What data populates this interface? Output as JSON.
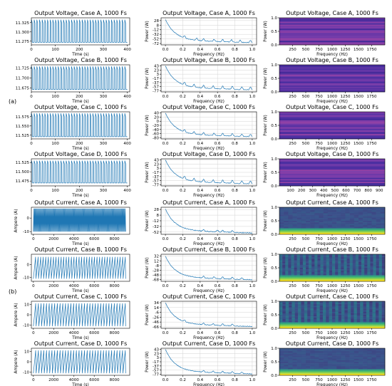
{
  "group_labels": [
    "(a)",
    "(b)"
  ],
  "chart_data": [
    {
      "type": "line",
      "title": "Output Voltage, Case A, 1000 Fs",
      "xlabel": "Time (s)",
      "ylabel": "",
      "xticks": [
        0,
        100,
        200,
        300,
        400
      ],
      "yticks": [
        11.275,
        11.3,
        11.325
      ],
      "xlim": [
        0,
        410
      ],
      "ylim": [
        11.265,
        11.338
      ],
      "signal": {
        "kind": "pulse",
        "periods": 36,
        "xmax": 400,
        "base": 11.272,
        "peak": 11.333,
        "duty": 0.35
      },
      "grid": false
    },
    {
      "type": "line",
      "title": "Output Voltage, Case A, 1000 Fs",
      "xlabel": "Frequency (Hz)",
      "ylabel": "Power (W)",
      "xticks": [
        0.0,
        0.2,
        0.4,
        0.6,
        0.8,
        1.0
      ],
      "yticks": [
        28,
        8,
        -12,
        -32,
        -52,
        -72
      ],
      "xlim": [
        -0.05,
        1.05
      ],
      "ylim": [
        -78,
        40
      ],
      "signal": {
        "kind": "spectrum",
        "start": 33,
        "end": -68,
        "peaks": [
          0.22,
          0.36,
          0.44,
          0.56,
          0.66,
          0.76,
          0.86,
          0.98
        ],
        "peak_height": 10
      },
      "grid": true
    },
    {
      "type": "heatmap",
      "title": "Output Voltage, Case A, 1000 Fs",
      "xlabel": "Frequency (Hz)",
      "ylabel": "Power (W)",
      "xticks": [
        250,
        500,
        750,
        1000,
        1250,
        1500,
        1750
      ],
      "yticks": [
        0.0,
        0.5,
        1.0
      ],
      "xlim": [
        0,
        2000
      ],
      "ylim": [
        0,
        1
      ],
      "colormap": "blue-purple",
      "style": "hbands",
      "rows": 20
    },
    {
      "type": "line",
      "title": "Output Voltage, Case B, 1000 Fs",
      "xlabel": "Time (s)",
      "ylabel": "",
      "xticks": [
        0,
        100,
        200,
        300,
        400
      ],
      "yticks": [
        11.675,
        11.7,
        11.725
      ],
      "xlim": [
        0,
        410
      ],
      "ylim": [
        11.665,
        11.733
      ],
      "signal": {
        "kind": "pulse",
        "periods": 36,
        "xmax": 400,
        "base": 11.671,
        "peak": 11.729,
        "duty": 0.4
      },
      "grid": false
    },
    {
      "type": "line",
      "title": "Output Voltage, Case B, 1000 Fs",
      "xlabel": "Frequency (Hz)",
      "ylabel": "Power (W)",
      "xticks": [
        0.0,
        0.2,
        0.4,
        0.6,
        0.8,
        1.0
      ],
      "yticks": [
        43,
        23,
        3,
        -17,
        -37,
        -57,
        -77
      ],
      "xlim": [
        -0.05,
        1.05
      ],
      "ylim": [
        -82,
        48
      ],
      "signal": {
        "kind": "spectrum",
        "start": 43,
        "end": -72,
        "peaks": [
          0.22,
          0.33,
          0.44,
          0.55,
          0.66,
          0.77,
          0.88,
          0.98
        ],
        "peak_height": 14
      },
      "grid": true
    },
    {
      "type": "heatmap",
      "title": "Output Voltage, Case B, 1000 Fs",
      "xlabel": "Frequency (Hz)",
      "ylabel": "Power (W)",
      "xticks": [
        250,
        500,
        750,
        1000,
        1250,
        1500,
        1750
      ],
      "yticks": [
        0.0,
        0.5,
        1.0
      ],
      "xlim": [
        0,
        2000
      ],
      "ylim": [
        0,
        1
      ],
      "colormap": "blue-purple",
      "style": "hbands",
      "rows": 22
    },
    {
      "type": "line",
      "title": "Output Voltage, Case C, 1000 Fs",
      "xlabel": "Time (s)",
      "ylabel": "",
      "xticks": [
        0,
        100,
        200,
        300,
        400
      ],
      "yticks": [
        11.525,
        11.55,
        11.575
      ],
      "xlim": [
        0,
        410
      ],
      "ylim": [
        11.515,
        11.588
      ],
      "signal": {
        "kind": "pulse",
        "periods": 36,
        "xmax": 400,
        "base": 11.521,
        "peak": 11.584,
        "duty": 0.35
      },
      "grid": false
    },
    {
      "type": "line",
      "title": "Output Voltage, Case C, 1000 Fs",
      "xlabel": "Frequency (Hz)",
      "ylabel": "Power (W)",
      "xticks": [
        0.0,
        0.2,
        0.4,
        0.6,
        0.8,
        1.0
      ],
      "yticks": [
        40,
        20,
        0,
        -20,
        -40,
        -60,
        -80
      ],
      "xlim": [
        -0.05,
        1.05
      ],
      "ylim": [
        -86,
        46
      ],
      "signal": {
        "kind": "spectrum",
        "start": 40,
        "end": -75,
        "peaks": [
          0.22,
          0.33,
          0.44,
          0.56,
          0.66,
          0.77,
          0.88,
          0.98
        ],
        "peak_height": 12
      },
      "grid": true
    },
    {
      "type": "heatmap",
      "title": "Output Voltage, Case C, 1000 Fs",
      "xlabel": "Frequency (Hz)",
      "ylabel": "Power (W)",
      "xticks": [
        250,
        500,
        750,
        1000,
        1250,
        1500,
        1750
      ],
      "yticks": [
        0.0,
        0.5,
        1.0
      ],
      "xlim": [
        0,
        2000
      ],
      "ylim": [
        0,
        1
      ],
      "colormap": "blue-purple",
      "style": "hbands",
      "rows": 16
    },
    {
      "type": "line",
      "title": "Output Voltage, Case D, 1000 Fs",
      "xlabel": "Time (s)",
      "ylabel": "",
      "xticks": [
        0,
        100,
        200,
        300,
        400
      ],
      "yticks": [
        11.475,
        11.5,
        11.525
      ],
      "xlim": [
        0,
        410
      ],
      "ylim": [
        11.462,
        11.535
      ],
      "signal": {
        "kind": "pulse",
        "periods": 36,
        "xmax": 400,
        "base": 11.47,
        "peak": 11.53,
        "duty": 0.4
      },
      "grid": false
    },
    {
      "type": "line",
      "title": "Output Voltage, Case D, 1000 Fs",
      "xlabel": "Frequency (Hz)",
      "ylabel": "Power (W)",
      "xticks": [
        0.0,
        0.2,
        0.4,
        0.6,
        0.8,
        1.0
      ],
      "yticks": [
        43,
        23,
        3,
        -17,
        -37,
        -57,
        -77
      ],
      "xlim": [
        -0.05,
        1.05
      ],
      "ylim": [
        -82,
        48
      ],
      "signal": {
        "kind": "spectrum",
        "start": 43,
        "end": -72,
        "peaks": [
          0.22,
          0.33,
          0.44,
          0.55,
          0.66,
          0.77,
          0.88,
          0.98
        ],
        "peak_height": 14
      },
      "grid": true
    },
    {
      "type": "heatmap",
      "title": "Output Voltage, Case D, 1000 Fs",
      "xlabel": "Frequency (Hz)",
      "ylabel": "Power (W)",
      "xticks": [
        100,
        200,
        300,
        400,
        500,
        600,
        700,
        800,
        900
      ],
      "yticks": [
        0.0,
        0.5,
        1.0
      ],
      "xlim": [
        0,
        950
      ],
      "ylim": [
        0,
        1
      ],
      "colormap": "blue-purple",
      "style": "hbands",
      "rows": 20
    },
    {
      "type": "line",
      "title": "Output Current, Case A, 1000 Fs",
      "xlabel": "Time (s)",
      "ylabel": "Ampere (A)",
      "xticks": [
        0,
        2000,
        4000,
        6000,
        8000
      ],
      "yticks": [
        -10,
        0
      ],
      "xlim": [
        -200,
        9500
      ],
      "ylim": [
        -12,
        8
      ],
      "signal": {
        "kind": "dense",
        "periods": 120,
        "xmax": 9100,
        "low": -10,
        "high": 7
      },
      "grid": false
    },
    {
      "type": "line",
      "title": "Output Current, Case A, 1000 Fs",
      "xlabel": "Frequency (Hz)",
      "ylabel": "Power (W)",
      "xticks": [
        0.0,
        0.2,
        0.4,
        0.6,
        0.8,
        1.0
      ],
      "yticks": [
        28,
        8,
        -12,
        -32,
        -52
      ],
      "xlim": [
        -0.05,
        1.05
      ],
      "ylim": [
        -60,
        36
      ],
      "signal": {
        "kind": "spectrum",
        "start": 30,
        "end": -55,
        "peaks": [
          0.44,
          0.6,
          0.66,
          0.77
        ],
        "peak_height": 6
      },
      "grid": true
    },
    {
      "type": "heatmap",
      "title": "Output Current, Case A, 1000 Fs",
      "xlabel": "Frequency (Hz)",
      "ylabel": "Power (W)",
      "xticks": [
        250,
        500,
        750,
        1000,
        1250,
        1500,
        1750
      ],
      "yticks": [
        0.0,
        0.5,
        1.0
      ],
      "xlim": [
        0,
        2000
      ],
      "ylim": [
        0,
        1
      ],
      "colormap": "viridis",
      "style": "bottom-glow",
      "cols": 24
    },
    {
      "type": "line",
      "title": "Output Current, Case B, 1000 Fs",
      "xlabel": "Time (s)",
      "ylabel": "Ampere (A)",
      "xticks": [
        0,
        2000,
        4000,
        6000,
        8000
      ],
      "yticks": [
        -10,
        0
      ],
      "xlim": [
        -200,
        9500
      ],
      "ylim": [
        -13,
        8
      ],
      "signal": {
        "kind": "sawtooth",
        "periods": 36,
        "xmax": 9100,
        "low": -11,
        "high": 6
      },
      "grid": false
    },
    {
      "type": "line",
      "title": "Output Current, Case B, 1000 Fs",
      "xlabel": "Frequency (Hz)",
      "ylabel": "Power (W)",
      "xticks": [
        0.0,
        0.2,
        0.4,
        0.6,
        0.8,
        1.0
      ],
      "yticks": [
        32,
        12,
        -8,
        -28,
        -48,
        -68
      ],
      "xlim": [
        -0.05,
        1.05
      ],
      "ylim": [
        -75,
        40
      ],
      "signal": {
        "kind": "spectrum",
        "start": 32,
        "end": -68,
        "peaks": [
          0.44,
          0.56,
          0.66,
          0.77,
          0.88
        ],
        "peak_height": 8
      },
      "grid": true
    },
    {
      "type": "heatmap",
      "title": "Output Current, Case B, 1000 Fs",
      "xlabel": "Frequency (Hz)",
      "ylabel": "Power (W)",
      "xticks": [
        250,
        500,
        750,
        1000,
        1250,
        1500,
        1750
      ],
      "yticks": [
        0.0,
        0.5,
        1.0
      ],
      "xlim": [
        0,
        2000
      ],
      "ylim": [
        0,
        1
      ],
      "colormap": "viridis",
      "style": "stripes",
      "cols": 36
    },
    {
      "type": "line",
      "title": "Output Current, Case C, 1000 Fs",
      "xlabel": "Time (s)",
      "ylabel": "Ampere (A)",
      "xticks": [
        0,
        2000,
        4000,
        6000,
        8000
      ],
      "yticks": [
        -10,
        0,
        10
      ],
      "xlim": [
        -200,
        9500
      ],
      "ylim": [
        -13,
        13
      ],
      "signal": {
        "kind": "sawtooth",
        "periods": 34,
        "xmax": 9100,
        "low": -11,
        "high": 11
      },
      "grid": false
    },
    {
      "type": "line",
      "title": "Output Current, Case C, 1000 Fs",
      "xlabel": "Frequency (Hz)",
      "ylabel": "Power (W)",
      "xticks": [
        0.0,
        0.2,
        0.4,
        0.6,
        0.8,
        1.0
      ],
      "yticks": [
        34,
        14,
        -6,
        -26,
        -46,
        -66
      ],
      "xlim": [
        -0.05,
        1.05
      ],
      "ylim": [
        -72,
        40
      ],
      "signal": {
        "kind": "spectrum",
        "start": 34,
        "end": -64,
        "peaks": [
          0.22,
          0.44,
          0.55,
          0.66,
          0.77
        ],
        "peak_height": 7
      },
      "grid": true
    },
    {
      "type": "heatmap",
      "title": "Output Current, Case C, 1000 Fs",
      "xlabel": "Frequency (Hz)",
      "ylabel": "Power (W)",
      "xticks": [
        250,
        500,
        750,
        1000,
        1250,
        1500,
        1750
      ],
      "yticks": [
        0.0,
        0.5,
        1.0
      ],
      "xlim": [
        0,
        2000
      ],
      "ylim": [
        0,
        1
      ],
      "colormap": "viridis",
      "style": "stripes",
      "cols": 34
    },
    {
      "type": "line",
      "title": "Output Current, Case D, 1000 Fs",
      "xlabel": "Time (s)",
      "ylabel": "Ampere (A)",
      "xticks": [
        0,
        2000,
        4000,
        6000,
        8000
      ],
      "yticks": [
        -10,
        0,
        10
      ],
      "xlim": [
        -200,
        9500
      ],
      "ylim": [
        -13,
        13
      ],
      "signal": {
        "kind": "sawtooth",
        "periods": 34,
        "xmax": 9100,
        "low": -11,
        "high": 11
      },
      "grid": false
    },
    {
      "type": "line",
      "title": "Output Current, Case D, 1000 Fs",
      "xlabel": "Frequency (Hz)",
      "ylabel": "Power (W)",
      "xticks": [
        0.0,
        0.2,
        0.4,
        0.6,
        0.8,
        1.0
      ],
      "yticks": [
        43,
        23,
        3,
        -17,
        -37,
        -57,
        -77
      ],
      "xlim": [
        -0.05,
        1.05
      ],
      "ylim": [
        -82,
        48
      ],
      "signal": {
        "kind": "spectrum",
        "start": 43,
        "end": -75,
        "peaks": [
          0.44,
          0.55,
          0.66,
          0.77,
          0.88
        ],
        "peak_height": 8
      },
      "grid": true
    },
    {
      "type": "heatmap",
      "title": "Output Current, Case D, 1000 Fs",
      "xlabel": "Frequency (Hz)",
      "ylabel": "Power (W)",
      "xticks": [
        250,
        500,
        750,
        1000,
        1250,
        1500,
        1750
      ],
      "yticks": [
        0.0,
        0.5,
        1.0
      ],
      "xlim": [
        0,
        2000
      ],
      "ylim": [
        0,
        1
      ],
      "colormap": "viridis",
      "style": "bottom-glow",
      "cols": 24
    }
  ],
  "colors": {
    "line": "#1f77b4",
    "axis": "#000000",
    "grid": "#d3d3d3",
    "text": "#000000"
  }
}
